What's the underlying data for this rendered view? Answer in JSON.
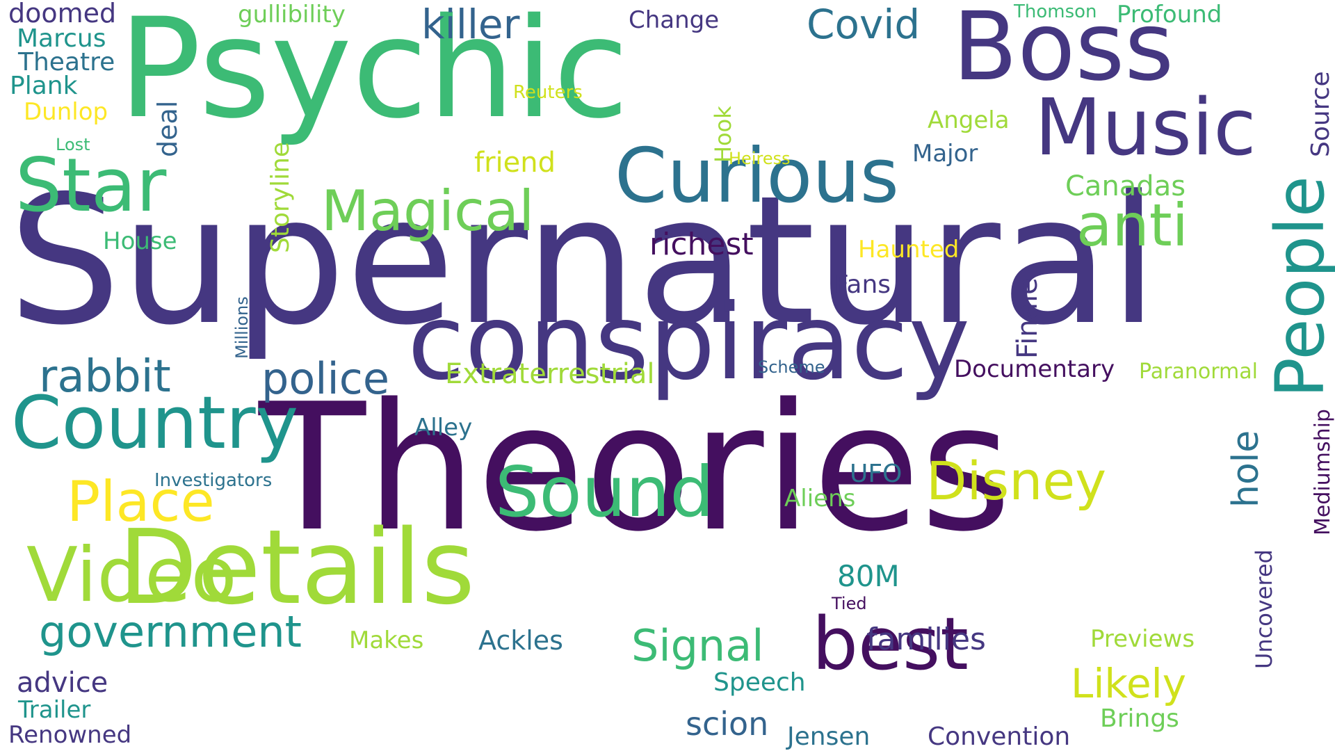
{
  "palette": {
    "background": "#ffffff",
    "dark_purple": "#440f5f",
    "indigo": "#453781",
    "blue": "#33638d",
    "teal_blue": "#2c728e",
    "teal": "#1f948c",
    "green": "#3cbb75",
    "light_green": "#6ece58",
    "lime": "#a0da39",
    "yellow_green": "#d0e11c",
    "yellow": "#fde725"
  },
  "words": [
    {
      "text": "Supernatural",
      "color": "#453781",
      "orientation": "horizontal"
    },
    {
      "text": "Theories",
      "color": "#440f5f",
      "orientation": "horizontal"
    },
    {
      "text": "Psychic",
      "color": "#3cbb75",
      "orientation": "horizontal"
    },
    {
      "text": "conspiracy",
      "color": "#453781",
      "orientation": "horizontal"
    },
    {
      "text": "Details",
      "color": "#a0da39",
      "orientation": "horizontal"
    },
    {
      "text": "Boss",
      "color": "#453781",
      "orientation": "horizontal"
    },
    {
      "text": "Music",
      "color": "#453781",
      "orientation": "horizontal"
    },
    {
      "text": "Curious",
      "color": "#2c728e",
      "orientation": "horizontal"
    },
    {
      "text": "best",
      "color": "#440f5f",
      "orientation": "horizontal"
    },
    {
      "text": "Country",
      "color": "#1f948c",
      "orientation": "horizontal"
    },
    {
      "text": "Video",
      "color": "#a0da39",
      "orientation": "horizontal"
    },
    {
      "text": "People",
      "color": "#1f948c",
      "orientation": "vertical"
    },
    {
      "text": "Star",
      "color": "#3cbb75",
      "orientation": "horizontal"
    },
    {
      "text": "Sound",
      "color": "#3cbb75",
      "orientation": "horizontal"
    },
    {
      "text": "Magical",
      "color": "#6ece58",
      "orientation": "horizontal"
    },
    {
      "text": "anti",
      "color": "#6ece58",
      "orientation": "horizontal"
    },
    {
      "text": "Disney",
      "color": "#d0e11c",
      "orientation": "horizontal"
    },
    {
      "text": "Place",
      "color": "#fde725",
      "orientation": "horizontal"
    },
    {
      "text": "police",
      "color": "#33638d",
      "orientation": "horizontal"
    },
    {
      "text": "rabbit",
      "color": "#2c728e",
      "orientation": "horizontal"
    },
    {
      "text": "government",
      "color": "#1f948c",
      "orientation": "horizontal"
    },
    {
      "text": "Signal",
      "color": "#3cbb75",
      "orientation": "horizontal"
    },
    {
      "text": "Likely",
      "color": "#d0e11c",
      "orientation": "horizontal"
    },
    {
      "text": "killer",
      "color": "#33638d",
      "orientation": "horizontal"
    },
    {
      "text": "Covid",
      "color": "#2c728e",
      "orientation": "horizontal"
    },
    {
      "text": "hole",
      "color": "#2c728e",
      "orientation": "vertical"
    },
    {
      "text": "families",
      "color": "#453781",
      "orientation": "horizontal"
    },
    {
      "text": "scion",
      "color": "#33638d",
      "orientation": "horizontal"
    },
    {
      "text": "advice",
      "color": "#453781",
      "orientation": "horizontal"
    },
    {
      "text": "Extraterrestrial",
      "color": "#a0da39",
      "orientation": "horizontal"
    },
    {
      "text": "Documentary",
      "color": "#440f5f",
      "orientation": "horizontal"
    },
    {
      "text": "Paranormal",
      "color": "#a0da39",
      "orientation": "horizontal"
    },
    {
      "text": "richest",
      "color": "#440f5f",
      "orientation": "horizontal"
    },
    {
      "text": "Finale",
      "color": "#453781",
      "orientation": "vertical"
    },
    {
      "text": "Storyline",
      "color": "#a0da39",
      "orientation": "vertical"
    },
    {
      "text": "friend",
      "color": "#d0e11c",
      "orientation": "horizontal"
    },
    {
      "text": "Canadas",
      "color": "#6ece58",
      "orientation": "horizontal"
    },
    {
      "text": "Source",
      "color": "#453781",
      "orientation": "vertical"
    },
    {
      "text": "80M",
      "color": "#1f948c",
      "orientation": "horizontal"
    },
    {
      "text": "Speech",
      "color": "#1f948c",
      "orientation": "horizontal"
    },
    {
      "text": "Convention",
      "color": "#453781",
      "orientation": "horizontal"
    },
    {
      "text": "Jensen",
      "color": "#2c728e",
      "orientation": "horizontal"
    },
    {
      "text": "Ackles",
      "color": "#2c728e",
      "orientation": "horizontal"
    },
    {
      "text": "Brings",
      "color": "#6ece58",
      "orientation": "horizontal"
    },
    {
      "text": "Previews",
      "color": "#a0da39",
      "orientation": "horizontal"
    },
    {
      "text": "Uncovered",
      "color": "#453781",
      "orientation": "vertical"
    },
    {
      "text": "Mediumship",
      "color": "#440f5f",
      "orientation": "vertical"
    },
    {
      "text": "doomed",
      "color": "#453781",
      "orientation": "horizontal"
    },
    {
      "text": "Marcus",
      "color": "#1f948c",
      "orientation": "horizontal"
    },
    {
      "text": "Theatre",
      "color": "#2c728e",
      "orientation": "horizontal"
    },
    {
      "text": "Plank",
      "color": "#1f948c",
      "orientation": "horizontal"
    },
    {
      "text": "Dunlop",
      "color": "#fde725",
      "orientation": "horizontal"
    },
    {
      "text": "Lost",
      "color": "#3cbb75",
      "orientation": "horizontal"
    },
    {
      "text": "deal",
      "color": "#33638d",
      "orientation": "vertical"
    },
    {
      "text": "gullibility",
      "color": "#6ece58",
      "orientation": "horizontal"
    },
    {
      "text": "Change",
      "color": "#453781",
      "orientation": "horizontal"
    },
    {
      "text": "Thomson",
      "color": "#3cbb75",
      "orientation": "horizontal"
    },
    {
      "text": "Profound",
      "color": "#3cbb75",
      "orientation": "horizontal"
    },
    {
      "text": "Reuters",
      "color": "#d0e11c",
      "orientation": "horizontal"
    },
    {
      "text": "Angela",
      "color": "#a0da39",
      "orientation": "horizontal"
    },
    {
      "text": "Hook",
      "color": "#a0da39",
      "orientation": "vertical"
    },
    {
      "text": "Heiress",
      "color": "#d0e11c",
      "orientation": "horizontal"
    },
    {
      "text": "Major",
      "color": "#33638d",
      "orientation": "horizontal"
    },
    {
      "text": "House",
      "color": "#3cbb75",
      "orientation": "horizontal"
    },
    {
      "text": "Haunted",
      "color": "#fde725",
      "orientation": "horizontal"
    },
    {
      "text": "Fans",
      "color": "#453781",
      "orientation": "horizontal"
    },
    {
      "text": "Millions",
      "color": "#33638d",
      "orientation": "vertical"
    },
    {
      "text": "Scheme",
      "color": "#33638d",
      "orientation": "horizontal"
    },
    {
      "text": "Alley",
      "color": "#2c728e",
      "orientation": "horizontal"
    },
    {
      "text": "UFO",
      "color": "#2c728e",
      "orientation": "horizontal"
    },
    {
      "text": "Aliens",
      "color": "#6ece58",
      "orientation": "horizontal"
    },
    {
      "text": "Investigators",
      "color": "#2c728e",
      "orientation": "horizontal"
    },
    {
      "text": "Tied",
      "color": "#440f5f",
      "orientation": "horizontal"
    },
    {
      "text": "Makes",
      "color": "#a0da39",
      "orientation": "horizontal"
    },
    {
      "text": "Trailer",
      "color": "#1f948c",
      "orientation": "horizontal"
    },
    {
      "text": "Renowned",
      "color": "#453781",
      "orientation": "horizontal"
    }
  ]
}
